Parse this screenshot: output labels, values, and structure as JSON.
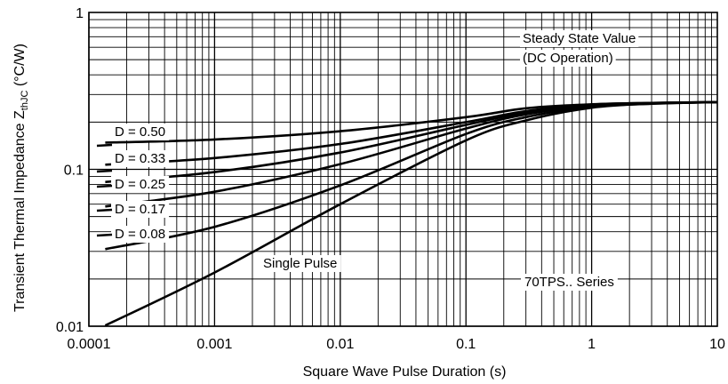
{
  "chart_data": {
    "type": "line",
    "xlabel": "Square Wave Pulse Duration (s)",
    "ylabel": {
      "main": "Transient Thermal Impedance Z",
      "subscript": "thJC",
      "unit": " (°C/W)"
    },
    "xscale": "log",
    "yscale": "log",
    "xlim": [
      0.0001,
      10
    ],
    "ylim": [
      0.01,
      1
    ],
    "grid": true,
    "xticks": [
      {
        "value": 0.0001,
        "label": "0.0001"
      },
      {
        "value": 0.001,
        "label": "0.001"
      },
      {
        "value": 0.01,
        "label": "0.01"
      },
      {
        "value": 0.1,
        "label": "0.1"
      },
      {
        "value": 1,
        "label": "1"
      },
      {
        "value": 10,
        "label": "10"
      }
    ],
    "yticks": [
      {
        "value": 0.01,
        "label": "0.01"
      },
      {
        "value": 0.1,
        "label": "0.1"
      },
      {
        "value": 1,
        "label": "1"
      }
    ],
    "series": [
      {
        "name": "D = 0.50",
        "x": [
          0.000135,
          0.001,
          0.01,
          0.1,
          0.3,
          1,
          3,
          10
        ],
        "y": [
          0.148,
          0.155,
          0.175,
          0.215,
          0.245,
          0.26,
          0.265,
          0.268
        ]
      },
      {
        "name": "D = 0.33",
        "x": [
          0.000135,
          0.001,
          0.01,
          0.1,
          0.3,
          1,
          3,
          10
        ],
        "y": [
          0.107,
          0.118,
          0.145,
          0.2,
          0.235,
          0.258,
          0.265,
          0.268
        ]
      },
      {
        "name": "D = 0.25",
        "x": [
          0.000135,
          0.001,
          0.01,
          0.1,
          0.3,
          1,
          3,
          10
        ],
        "y": [
          0.083,
          0.096,
          0.128,
          0.192,
          0.23,
          0.256,
          0.264,
          0.268
        ]
      },
      {
        "name": "D = 0.17",
        "x": [
          0.000135,
          0.001,
          0.01,
          0.1,
          0.3,
          1,
          3,
          10
        ],
        "y": [
          0.058,
          0.072,
          0.108,
          0.182,
          0.224,
          0.254,
          0.264,
          0.268
        ]
      },
      {
        "name": "D = 0.08",
        "x": [
          0.000135,
          0.001,
          0.01,
          0.1,
          0.3,
          1,
          3,
          10
        ],
        "y": [
          0.031,
          0.043,
          0.079,
          0.168,
          0.215,
          0.25,
          0.262,
          0.268
        ]
      },
      {
        "name": "Single Pulse",
        "x": [
          0.000135,
          0.001,
          0.01,
          0.1,
          0.3,
          1,
          3,
          10
        ],
        "y": [
          0.0101,
          0.022,
          0.06,
          0.153,
          0.205,
          0.247,
          0.262,
          0.268
        ]
      }
    ],
    "annotations": [
      {
        "id": "steady-state-1",
        "text": "Steady State Value"
      },
      {
        "id": "steady-state-2",
        "text": "(DC Operation)"
      },
      {
        "id": "series-name",
        "text": "70TPS.. Series"
      }
    ]
  }
}
